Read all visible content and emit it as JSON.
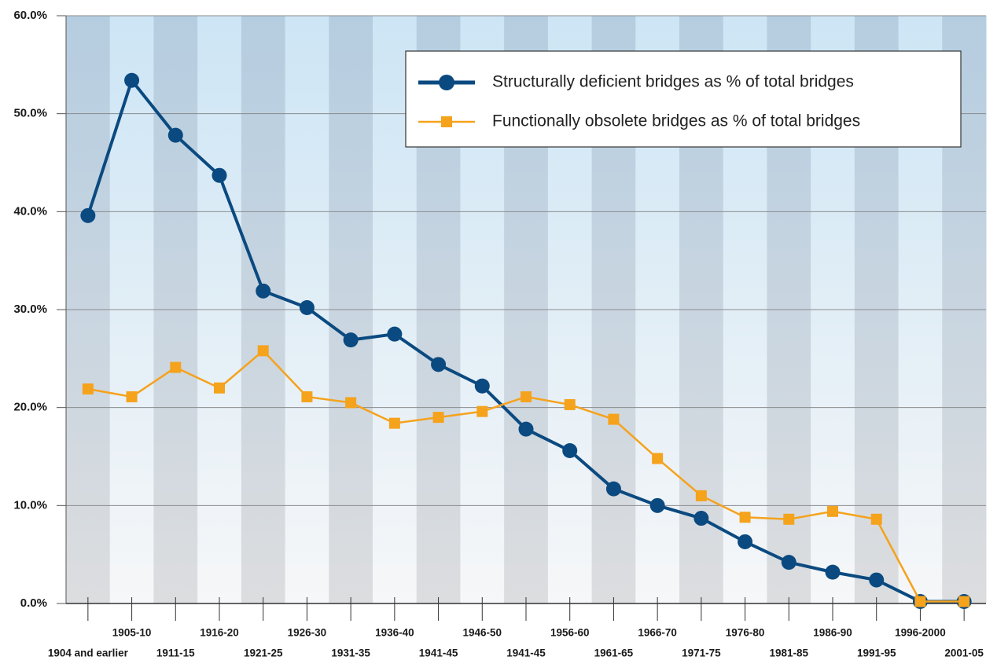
{
  "chart_data": {
    "type": "line",
    "categories": [
      "1904 and earlier",
      "1905-10",
      "1911-15",
      "1916-20",
      "1921-25",
      "1926-30",
      "1931-35",
      "1936-40",
      "1941-45",
      "1946-50",
      "1941-45",
      "1956-60",
      "1961-65",
      "1966-70",
      "1971-75",
      "1976-80",
      "1981-85",
      "1986-90",
      "1991-95",
      "1996-2000",
      "2001-05"
    ],
    "series": [
      {
        "name": "Structurally deficient bridges as % of total bridges",
        "color": "#0b4a80",
        "marker": "circle",
        "values": [
          39.6,
          53.4,
          47.8,
          43.7,
          31.9,
          30.2,
          26.9,
          27.5,
          24.4,
          22.2,
          17.8,
          15.6,
          11.7,
          10.0,
          8.7,
          6.3,
          4.2,
          3.2,
          2.4,
          0.2,
          0.2
        ]
      },
      {
        "name": "Functionally obsolete bridges as % of total bridges",
        "color": "#f5a21c",
        "marker": "square",
        "values": [
          21.9,
          21.1,
          24.1,
          22.0,
          25.8,
          21.1,
          20.5,
          18.4,
          19.0,
          19.6,
          21.1,
          20.3,
          18.8,
          14.8,
          11.0,
          8.8,
          8.6,
          9.4,
          8.6,
          0.2,
          0.2
        ]
      }
    ],
    "ylim": [
      0,
      60
    ],
    "yticks": [
      {
        "value": 0,
        "label": "0.0%"
      },
      {
        "value": 10,
        "label": "10.0%"
      },
      {
        "value": 20,
        "label": "20.0%"
      },
      {
        "value": 30,
        "label": "30.0%"
      },
      {
        "value": 40,
        "label": "40.0%"
      },
      {
        "value": 50,
        "label": "50.0%"
      },
      {
        "value": 60,
        "label": "60.0%"
      }
    ],
    "grid": true,
    "legend": "top-right"
  }
}
